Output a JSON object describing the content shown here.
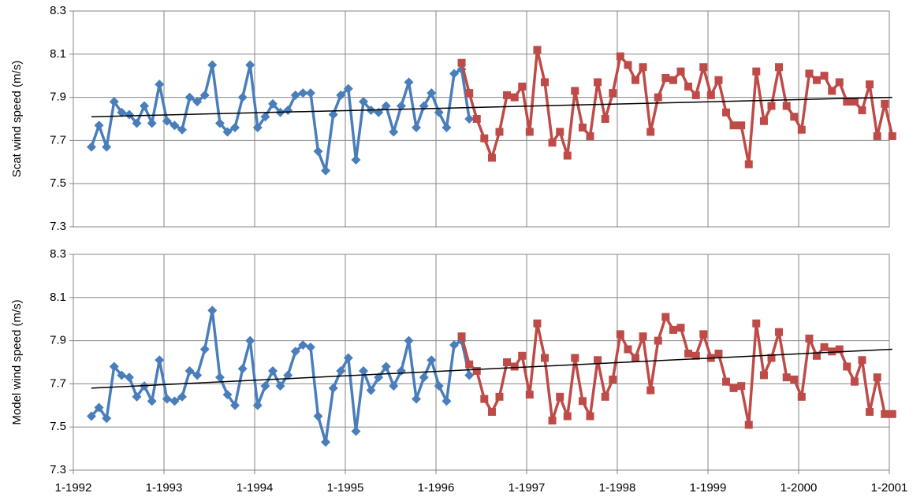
{
  "chart_data": [
    {
      "type": "line",
      "ylabel": "Scat wind speed (m/s)",
      "ylim": [
        7.3,
        8.3
      ],
      "yticks": [
        7.3,
        7.5,
        7.7,
        7.9,
        8.1,
        8.3
      ],
      "xlim": [
        1992,
        2001
      ],
      "grid": true,
      "x": [
        1992.2,
        1992.283,
        1992.367,
        1992.45,
        1992.533,
        1992.617,
        1992.7,
        1992.783,
        1992.867,
        1992.95,
        1993.033,
        1993.117,
        1993.2,
        1993.283,
        1993.367,
        1993.45,
        1993.533,
        1993.617,
        1993.7,
        1993.783,
        1993.867,
        1993.95,
        1994.033,
        1994.117,
        1994.2,
        1994.283,
        1994.367,
        1994.45,
        1994.533,
        1994.617,
        1994.7,
        1994.783,
        1994.867,
        1994.95,
        1995.033,
        1995.117,
        1995.2,
        1995.283,
        1995.367,
        1995.45,
        1995.533,
        1995.617,
        1995.7,
        1995.783,
        1995.867,
        1995.95,
        1996.033,
        1996.117,
        1996.2,
        1996.283,
        1996.367,
        1996.45,
        1996.533,
        1996.617,
        1996.7,
        1996.783,
        1996.867,
        1996.95,
        1997.033,
        1997.117,
        1997.2,
        1997.283,
        1997.367,
        1997.45,
        1997.533,
        1997.617,
        1997.7,
        1997.783,
        1997.867,
        1997.95,
        1998.033,
        1998.117,
        1998.2,
        1998.283,
        1998.367,
        1998.45,
        1998.533,
        1998.617,
        1998.7,
        1998.783,
        1998.867,
        1998.95,
        1999.033,
        1999.117,
        1999.2,
        1999.283,
        1999.367,
        1999.45,
        1999.533,
        1999.617,
        1999.7,
        1999.783,
        1999.867,
        1999.95,
        2000.033,
        2000.117,
        2000.2,
        2000.283,
        2000.367,
        2000.45,
        2000.533,
        2000.617,
        2000.7,
        2000.783,
        2000.867,
        2000.95,
        2001.033
      ],
      "series": [
        {
          "color": "#4a7ebb",
          "marker": "diamond",
          "values": [
            7.67,
            7.77,
            7.67,
            7.88,
            7.83,
            7.82,
            7.78,
            7.86,
            7.78,
            7.96,
            7.79,
            7.77,
            7.75,
            7.9,
            7.88,
            7.91,
            8.05,
            7.78,
            7.74,
            7.76,
            7.9,
            8.05,
            7.76,
            7.81,
            7.87,
            7.83,
            7.84,
            7.91,
            7.92,
            7.92,
            7.65,
            7.56,
            7.82,
            7.91,
            7.94,
            7.61,
            7.88,
            7.84,
            7.83,
            7.86,
            7.74,
            7.86,
            7.97,
            7.76,
            7.86,
            7.92,
            7.83,
            7.76,
            8.01,
            8.03,
            7.8,
            null,
            null,
            null,
            null,
            null,
            null,
            null,
            null,
            null,
            null,
            null,
            null,
            null,
            null,
            null,
            null,
            null,
            null,
            null,
            null,
            null,
            null,
            null,
            null,
            null,
            null,
            null,
            null,
            null,
            null,
            null,
            null,
            null,
            null,
            null,
            null,
            null,
            null,
            null,
            null,
            null,
            null,
            null,
            null,
            null,
            null,
            null,
            null,
            null,
            null,
            null,
            null,
            null,
            null,
            null,
            null
          ]
        },
        {
          "color": "#be4b48",
          "marker": "square",
          "values": [
            null,
            null,
            null,
            null,
            null,
            null,
            null,
            null,
            null,
            null,
            null,
            null,
            null,
            null,
            null,
            null,
            null,
            null,
            null,
            null,
            null,
            null,
            null,
            null,
            null,
            null,
            null,
            null,
            null,
            null,
            null,
            null,
            null,
            null,
            null,
            null,
            null,
            null,
            null,
            null,
            null,
            null,
            null,
            null,
            null,
            null,
            null,
            null,
            null,
            8.06,
            7.92,
            7.8,
            7.71,
            7.62,
            7.74,
            7.91,
            7.9,
            7.95,
            7.74,
            8.12,
            7.97,
            7.69,
            7.74,
            7.63,
            7.93,
            7.76,
            7.72,
            7.97,
            7.8,
            7.92,
            8.09,
            8.05,
            7.98,
            8.04,
            7.74,
            7.9,
            7.99,
            7.98,
            8.02,
            7.95,
            7.91,
            8.04,
            7.91,
            7.98,
            7.83,
            7.77,
            7.77,
            7.59,
            8.02,
            7.79,
            7.86,
            8.04,
            7.86,
            7.81,
            7.75,
            8.01,
            7.98,
            8.0,
            7.93,
            7.97,
            7.88,
            7.88,
            7.84,
            7.96,
            7.72,
            7.87,
            7.72
          ]
        }
      ],
      "trend": {
        "color": "#000000",
        "x": [
          1992.2,
          2001.033
        ],
        "values": [
          7.81,
          7.9
        ]
      }
    },
    {
      "type": "line",
      "ylabel": "Model wind speed (m/s)",
      "ylim": [
        7.3,
        8.3
      ],
      "yticks": [
        7.3,
        7.5,
        7.7,
        7.9,
        8.1,
        8.3
      ],
      "xlim": [
        1992,
        2001
      ],
      "grid": true,
      "xticks": [
        {
          "value": 1992,
          "label": "1-1992"
        },
        {
          "value": 1993,
          "label": "1-1993"
        },
        {
          "value": 1994,
          "label": "1-1994"
        },
        {
          "value": 1995,
          "label": "1-1995"
        },
        {
          "value": 1996,
          "label": "1-1996"
        },
        {
          "value": 1997,
          "label": "1-1997"
        },
        {
          "value": 1998,
          "label": "1-1998"
        },
        {
          "value": 1999,
          "label": "1-1999"
        },
        {
          "value": 2000,
          "label": "1-2000"
        },
        {
          "value": 2001,
          "label": "1-2001"
        }
      ],
      "x": [
        1992.2,
        1992.283,
        1992.367,
        1992.45,
        1992.533,
        1992.617,
        1992.7,
        1992.783,
        1992.867,
        1992.95,
        1993.033,
        1993.117,
        1993.2,
        1993.283,
        1993.367,
        1993.45,
        1993.533,
        1993.617,
        1993.7,
        1993.783,
        1993.867,
        1993.95,
        1994.033,
        1994.117,
        1994.2,
        1994.283,
        1994.367,
        1994.45,
        1994.533,
        1994.617,
        1994.7,
        1994.783,
        1994.867,
        1994.95,
        1995.033,
        1995.117,
        1995.2,
        1995.283,
        1995.367,
        1995.45,
        1995.533,
        1995.617,
        1995.7,
        1995.783,
        1995.867,
        1995.95,
        1996.033,
        1996.117,
        1996.2,
        1996.283,
        1996.367,
        1996.45,
        1996.533,
        1996.617,
        1996.7,
        1996.783,
        1996.867,
        1996.95,
        1997.033,
        1997.117,
        1997.2,
        1997.283,
        1997.367,
        1997.45,
        1997.533,
        1997.617,
        1997.7,
        1997.783,
        1997.867,
        1997.95,
        1998.033,
        1998.117,
        1998.2,
        1998.283,
        1998.367,
        1998.45,
        1998.533,
        1998.617,
        1998.7,
        1998.783,
        1998.867,
        1998.95,
        1999.033,
        1999.117,
        1999.2,
        1999.283,
        1999.367,
        1999.45,
        1999.533,
        1999.617,
        1999.7,
        1999.783,
        1999.867,
        1999.95,
        2000.033,
        2000.117,
        2000.2,
        2000.283,
        2000.367,
        2000.45,
        2000.533,
        2000.617,
        2000.7,
        2000.783,
        2000.867,
        2000.95,
        2001.033
      ],
      "series": [
        {
          "color": "#4a7ebb",
          "marker": "diamond",
          "values": [
            7.55,
            7.59,
            7.54,
            7.78,
            7.74,
            7.73,
            7.64,
            7.69,
            7.62,
            7.81,
            7.63,
            7.62,
            7.64,
            7.76,
            7.74,
            7.86,
            8.04,
            7.73,
            7.65,
            7.6,
            7.77,
            7.9,
            7.6,
            7.69,
            7.76,
            7.69,
            7.74,
            7.85,
            7.88,
            7.87,
            7.55,
            7.43,
            7.68,
            7.76,
            7.82,
            7.48,
            7.76,
            7.67,
            7.73,
            7.78,
            7.69,
            7.76,
            7.9,
            7.63,
            7.73,
            7.81,
            7.69,
            7.62,
            7.88,
            7.9,
            7.74,
            null,
            null,
            null,
            null,
            null,
            null,
            null,
            null,
            null,
            null,
            null,
            null,
            null,
            null,
            null,
            null,
            null,
            null,
            null,
            null,
            null,
            null,
            null,
            null,
            null,
            null,
            null,
            null,
            null,
            null,
            null,
            null,
            null,
            null,
            null,
            null,
            null,
            null,
            null,
            null,
            null,
            null,
            null,
            null,
            null,
            null,
            null,
            null,
            null,
            null,
            null,
            null,
            null,
            null,
            null,
            null
          ]
        },
        {
          "color": "#be4b48",
          "marker": "square",
          "values": [
            null,
            null,
            null,
            null,
            null,
            null,
            null,
            null,
            null,
            null,
            null,
            null,
            null,
            null,
            null,
            null,
            null,
            null,
            null,
            null,
            null,
            null,
            null,
            null,
            null,
            null,
            null,
            null,
            null,
            null,
            null,
            null,
            null,
            null,
            null,
            null,
            null,
            null,
            null,
            null,
            null,
            null,
            null,
            null,
            null,
            null,
            null,
            null,
            null,
            7.92,
            7.79,
            7.76,
            7.63,
            7.57,
            7.64,
            7.8,
            7.78,
            7.83,
            7.65,
            7.98,
            7.82,
            7.53,
            7.64,
            7.55,
            7.82,
            7.62,
            7.55,
            7.81,
            7.64,
            7.72,
            7.93,
            7.86,
            7.82,
            7.92,
            7.67,
            7.9,
            8.01,
            7.95,
            7.96,
            7.84,
            7.83,
            7.93,
            7.82,
            7.84,
            7.71,
            7.68,
            7.69,
            7.51,
            7.98,
            7.74,
            7.82,
            7.94,
            7.73,
            7.72,
            7.64,
            7.91,
            7.83,
            7.87,
            7.85,
            7.86,
            7.78,
            7.71,
            7.81,
            7.57,
            7.73,
            7.56,
            7.56
          ]
        }
      ],
      "trend": {
        "color": "#000000",
        "x": [
          1992.2,
          2001.033
        ],
        "values": [
          7.68,
          7.86
        ]
      }
    }
  ]
}
